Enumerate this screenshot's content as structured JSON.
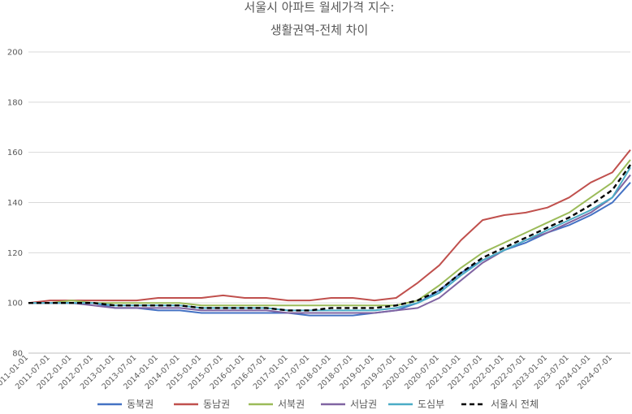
{
  "chart_data": {
    "type": "line",
    "title_line1": "서울시 아파트 월세가격 지수:",
    "title_line2": "생활권역-전체 차이",
    "xlabel": "",
    "ylabel": "",
    "ylim": [
      80,
      200
    ],
    "yticks": [
      "80",
      "100",
      "120",
      "140",
      "160",
      "180",
      "200"
    ],
    "grid": true,
    "legend_position": "bottom",
    "x_tick_labels": [
      "2011-01-01",
      "2011-07-01",
      "2012-01-01",
      "2012-07-01",
      "2013-01-01",
      "2013-07-01",
      "2014-01-01",
      "2014-07-01",
      "2015-01-01",
      "2015-07-01",
      "2016-01-01",
      "2016-07-01",
      "2017-01-01",
      "2017-07-01",
      "2018-01-01",
      "2018-07-01",
      "2019-01-01",
      "2019-07-01",
      "2020-01-01",
      "2020-07-01",
      "2021-01-01",
      "2021-07-01",
      "2022-01-01",
      "2022-07-01",
      "2023-01-01",
      "2023-07-01",
      "2024-01-01",
      "2024-07-01"
    ],
    "x_months": [
      "2011-01",
      "2011-07",
      "2012-01",
      "2012-07",
      "2013-01",
      "2013-07",
      "2014-01",
      "2014-07",
      "2015-01",
      "2015-07",
      "2016-01",
      "2016-07",
      "2017-01",
      "2017-07",
      "2018-01",
      "2018-07",
      "2019-01",
      "2019-07",
      "2020-01",
      "2020-07",
      "2021-01",
      "2021-07",
      "2022-01",
      "2022-07",
      "2023-01",
      "2023-07",
      "2024-01",
      "2024-07",
      "2024-12"
    ],
    "series": [
      {
        "name": "동북권",
        "color": "#4472C4",
        "dashed": false,
        "values": [
          100,
          100,
          100,
          100,
          98,
          98,
          97,
          97,
          96,
          96,
          96,
          96,
          96,
          95,
          95,
          95,
          96,
          97,
          100,
          105,
          112,
          117,
          121,
          124,
          128,
          131,
          135,
          140,
          148
        ]
      },
      {
        "name": "동남권",
        "color": "#C0504D",
        "dashed": false,
        "values": [
          100,
          101,
          101,
          101,
          101,
          101,
          102,
          102,
          102,
          103,
          102,
          102,
          101,
          101,
          102,
          102,
          101,
          102,
          108,
          115,
          125,
          133,
          135,
          136,
          138,
          142,
          148,
          152,
          161
        ]
      },
      {
        "name": "서북권",
        "color": "#9BBB59",
        "dashed": false,
        "values": [
          100,
          100,
          101,
          100,
          100,
          100,
          100,
          100,
          99,
          99,
          99,
          99,
          99,
          99,
          99,
          99,
          99,
          99,
          101,
          107,
          114,
          120,
          124,
          128,
          132,
          136,
          142,
          148,
          157
        ]
      },
      {
        "name": "서남권",
        "color": "#8064A2",
        "dashed": false,
        "values": [
          100,
          100,
          100,
          99,
          98,
          98,
          98,
          98,
          97,
          97,
          97,
          97,
          96,
          96,
          96,
          96,
          96,
          97,
          98,
          102,
          109,
          116,
          121,
          125,
          128,
          132,
          136,
          142,
          151
        ]
      },
      {
        "name": "도심부",
        "color": "#4BACC6",
        "dashed": false,
        "values": [
          100,
          100,
          100,
          100,
          99,
          99,
          99,
          99,
          98,
          98,
          98,
          98,
          97,
          97,
          97,
          97,
          97,
          98,
          100,
          104,
          111,
          117,
          121,
          125,
          129,
          133,
          137,
          142,
          154
        ]
      },
      {
        "name": "서울시 전체",
        "color": "#000000",
        "dashed": true,
        "values": [
          100,
          100,
          100,
          100,
          99,
          99,
          99,
          99,
          98,
          98,
          98,
          98,
          97,
          97,
          98,
          98,
          98,
          99,
          101,
          105,
          112,
          118,
          122,
          126,
          130,
          134,
          139,
          145,
          155
        ]
      }
    ]
  }
}
